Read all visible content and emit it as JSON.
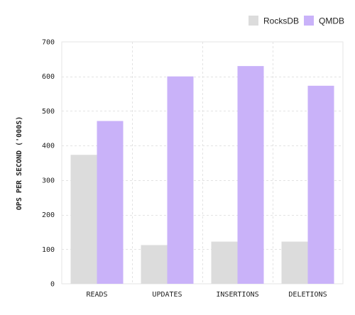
{
  "chart_data": {
    "type": "bar",
    "categories": [
      "READS",
      "UPDATES",
      "INSERTIONS",
      "DELETIONS"
    ],
    "series": [
      {
        "name": "RocksDB",
        "color": "#dcdcdc",
        "values": [
          373,
          112,
          122,
          122
        ]
      },
      {
        "name": "QMDB",
        "color": "#c9b2f9",
        "values": [
          471,
          600,
          630,
          573
        ]
      }
    ],
    "title": "",
    "xlabel": "",
    "ylabel": "OPS PER SECOND ('000S)",
    "ylim": [
      0,
      700
    ],
    "yticks": [
      0,
      100,
      200,
      300,
      400,
      500,
      600,
      700
    ],
    "grid": true,
    "legend_position": "top-right"
  }
}
